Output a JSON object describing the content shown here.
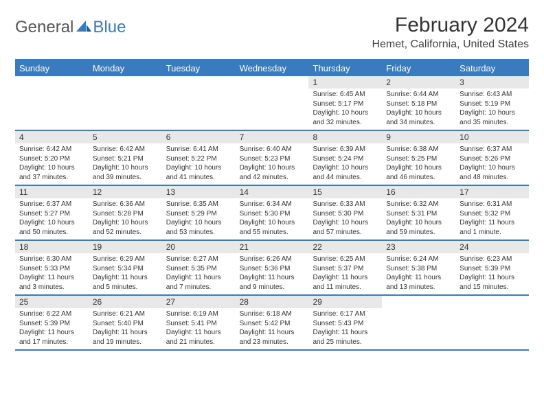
{
  "logo": {
    "general": "General",
    "blue": "Blue"
  },
  "title": "February 2024",
  "location": "Hemet, California, United States",
  "colors": {
    "accent": "#3a7bbf",
    "datebar": "#e8e8e8",
    "text": "#333333",
    "bg": "#ffffff"
  },
  "dayNames": [
    "Sunday",
    "Monday",
    "Tuesday",
    "Wednesday",
    "Thursday",
    "Friday",
    "Saturday"
  ],
  "weeks": [
    [
      null,
      null,
      null,
      null,
      {
        "d": "1",
        "sr": "Sunrise: 6:45 AM",
        "ss": "Sunset: 5:17 PM",
        "dl": "Daylight: 10 hours and 32 minutes."
      },
      {
        "d": "2",
        "sr": "Sunrise: 6:44 AM",
        "ss": "Sunset: 5:18 PM",
        "dl": "Daylight: 10 hours and 34 minutes."
      },
      {
        "d": "3",
        "sr": "Sunrise: 6:43 AM",
        "ss": "Sunset: 5:19 PM",
        "dl": "Daylight: 10 hours and 35 minutes."
      }
    ],
    [
      {
        "d": "4",
        "sr": "Sunrise: 6:42 AM",
        "ss": "Sunset: 5:20 PM",
        "dl": "Daylight: 10 hours and 37 minutes."
      },
      {
        "d": "5",
        "sr": "Sunrise: 6:42 AM",
        "ss": "Sunset: 5:21 PM",
        "dl": "Daylight: 10 hours and 39 minutes."
      },
      {
        "d": "6",
        "sr": "Sunrise: 6:41 AM",
        "ss": "Sunset: 5:22 PM",
        "dl": "Daylight: 10 hours and 41 minutes."
      },
      {
        "d": "7",
        "sr": "Sunrise: 6:40 AM",
        "ss": "Sunset: 5:23 PM",
        "dl": "Daylight: 10 hours and 42 minutes."
      },
      {
        "d": "8",
        "sr": "Sunrise: 6:39 AM",
        "ss": "Sunset: 5:24 PM",
        "dl": "Daylight: 10 hours and 44 minutes."
      },
      {
        "d": "9",
        "sr": "Sunrise: 6:38 AM",
        "ss": "Sunset: 5:25 PM",
        "dl": "Daylight: 10 hours and 46 minutes."
      },
      {
        "d": "10",
        "sr": "Sunrise: 6:37 AM",
        "ss": "Sunset: 5:26 PM",
        "dl": "Daylight: 10 hours and 48 minutes."
      }
    ],
    [
      {
        "d": "11",
        "sr": "Sunrise: 6:37 AM",
        "ss": "Sunset: 5:27 PM",
        "dl": "Daylight: 10 hours and 50 minutes."
      },
      {
        "d": "12",
        "sr": "Sunrise: 6:36 AM",
        "ss": "Sunset: 5:28 PM",
        "dl": "Daylight: 10 hours and 52 minutes."
      },
      {
        "d": "13",
        "sr": "Sunrise: 6:35 AM",
        "ss": "Sunset: 5:29 PM",
        "dl": "Daylight: 10 hours and 53 minutes."
      },
      {
        "d": "14",
        "sr": "Sunrise: 6:34 AM",
        "ss": "Sunset: 5:30 PM",
        "dl": "Daylight: 10 hours and 55 minutes."
      },
      {
        "d": "15",
        "sr": "Sunrise: 6:33 AM",
        "ss": "Sunset: 5:30 PM",
        "dl": "Daylight: 10 hours and 57 minutes."
      },
      {
        "d": "16",
        "sr": "Sunrise: 6:32 AM",
        "ss": "Sunset: 5:31 PM",
        "dl": "Daylight: 10 hours and 59 minutes."
      },
      {
        "d": "17",
        "sr": "Sunrise: 6:31 AM",
        "ss": "Sunset: 5:32 PM",
        "dl": "Daylight: 11 hours and 1 minute."
      }
    ],
    [
      {
        "d": "18",
        "sr": "Sunrise: 6:30 AM",
        "ss": "Sunset: 5:33 PM",
        "dl": "Daylight: 11 hours and 3 minutes."
      },
      {
        "d": "19",
        "sr": "Sunrise: 6:29 AM",
        "ss": "Sunset: 5:34 PM",
        "dl": "Daylight: 11 hours and 5 minutes."
      },
      {
        "d": "20",
        "sr": "Sunrise: 6:27 AM",
        "ss": "Sunset: 5:35 PM",
        "dl": "Daylight: 11 hours and 7 minutes."
      },
      {
        "d": "21",
        "sr": "Sunrise: 6:26 AM",
        "ss": "Sunset: 5:36 PM",
        "dl": "Daylight: 11 hours and 9 minutes."
      },
      {
        "d": "22",
        "sr": "Sunrise: 6:25 AM",
        "ss": "Sunset: 5:37 PM",
        "dl": "Daylight: 11 hours and 11 minutes."
      },
      {
        "d": "23",
        "sr": "Sunrise: 6:24 AM",
        "ss": "Sunset: 5:38 PM",
        "dl": "Daylight: 11 hours and 13 minutes."
      },
      {
        "d": "24",
        "sr": "Sunrise: 6:23 AM",
        "ss": "Sunset: 5:39 PM",
        "dl": "Daylight: 11 hours and 15 minutes."
      }
    ],
    [
      {
        "d": "25",
        "sr": "Sunrise: 6:22 AM",
        "ss": "Sunset: 5:39 PM",
        "dl": "Daylight: 11 hours and 17 minutes."
      },
      {
        "d": "26",
        "sr": "Sunrise: 6:21 AM",
        "ss": "Sunset: 5:40 PM",
        "dl": "Daylight: 11 hours and 19 minutes."
      },
      {
        "d": "27",
        "sr": "Sunrise: 6:19 AM",
        "ss": "Sunset: 5:41 PM",
        "dl": "Daylight: 11 hours and 21 minutes."
      },
      {
        "d": "28",
        "sr": "Sunrise: 6:18 AM",
        "ss": "Sunset: 5:42 PM",
        "dl": "Daylight: 11 hours and 23 minutes."
      },
      {
        "d": "29",
        "sr": "Sunrise: 6:17 AM",
        "ss": "Sunset: 5:43 PM",
        "dl": "Daylight: 11 hours and 25 minutes."
      },
      null,
      null
    ]
  ]
}
